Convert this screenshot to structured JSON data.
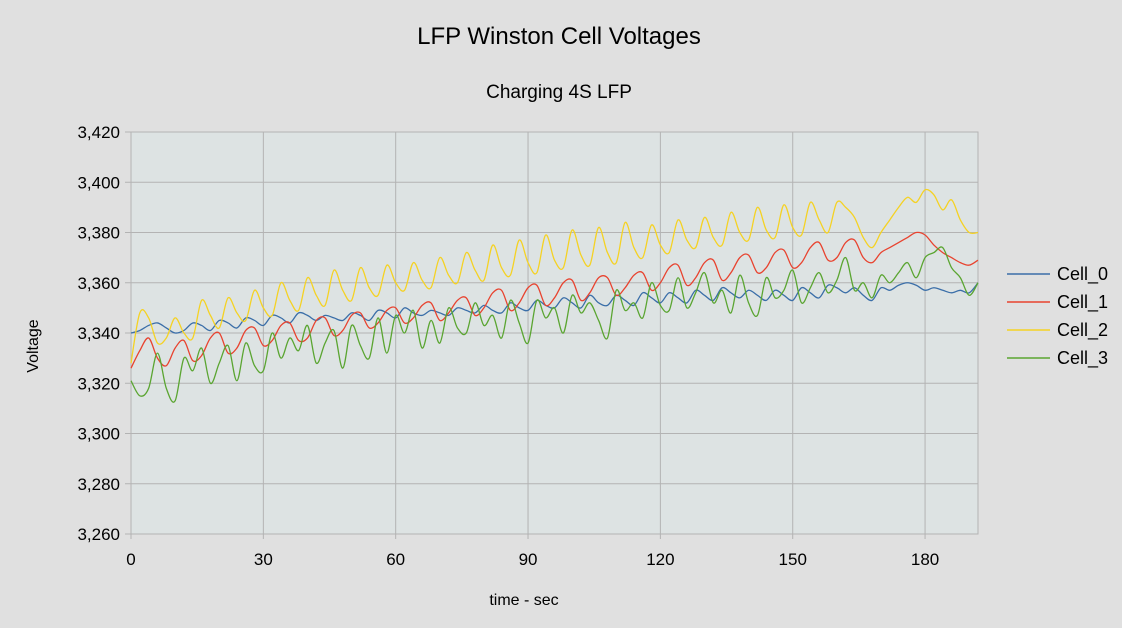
{
  "chart_data": {
    "type": "line",
    "title": "LFP Winston Cell Voltages",
    "subtitle": "Charging 4S LFP",
    "xlabel": "time - sec",
    "ylabel": "Voltage",
    "xlim": [
      0,
      192
    ],
    "ylim": [
      3.26,
      3.42
    ],
    "xticks": [
      0,
      30,
      60,
      90,
      120,
      150,
      180
    ],
    "xtick_labels": [
      "0",
      "30",
      "60",
      "90",
      "120",
      "150",
      "180"
    ],
    "yticks": [
      3.26,
      3.28,
      3.3,
      3.32,
      3.34,
      3.36,
      3.38,
      3.4,
      3.42
    ],
    "ytick_labels": [
      "3,260",
      "3,280",
      "3,300",
      "3,320",
      "3,340",
      "3,360",
      "3,380",
      "3,400",
      "3,420"
    ],
    "grid": true,
    "legend_position": "right",
    "plot_background": "#dde3e3",
    "series": [
      {
        "name": "Cell_0",
        "color": "#3a6ea8",
        "x": [
          0,
          2,
          4,
          6,
          8,
          10,
          12,
          14,
          16,
          18,
          20,
          22,
          24,
          26,
          28,
          30,
          32,
          34,
          36,
          38,
          40,
          42,
          44,
          46,
          48,
          50,
          52,
          54,
          56,
          58,
          60,
          62,
          64,
          66,
          68,
          70,
          72,
          74,
          76,
          78,
          80,
          82,
          84,
          86,
          88,
          90,
          92,
          94,
          96,
          98,
          100,
          102,
          104,
          106,
          108,
          110,
          112,
          114,
          116,
          118,
          120,
          122,
          124,
          126,
          128,
          130,
          132,
          134,
          136,
          138,
          140,
          142,
          144,
          146,
          148,
          150,
          152,
          154,
          156,
          158,
          160,
          162,
          164,
          166,
          168,
          170,
          172,
          174,
          176,
          178,
          180,
          182,
          184,
          186,
          188,
          190,
          192
        ],
        "values": [
          3.34,
          3.341,
          3.343,
          3.344,
          3.342,
          3.34,
          3.341,
          3.344,
          3.343,
          3.341,
          3.345,
          3.344,
          3.342,
          3.346,
          3.345,
          3.343,
          3.347,
          3.346,
          3.344,
          3.348,
          3.347,
          3.345,
          3.347,
          3.346,
          3.345,
          3.348,
          3.347,
          3.345,
          3.349,
          3.348,
          3.346,
          3.35,
          3.348,
          3.347,
          3.349,
          3.348,
          3.347,
          3.35,
          3.349,
          3.348,
          3.351,
          3.349,
          3.348,
          3.352,
          3.35,
          3.349,
          3.353,
          3.351,
          3.35,
          3.354,
          3.352,
          3.35,
          3.355,
          3.352,
          3.351,
          3.355,
          3.353,
          3.351,
          3.356,
          3.354,
          3.352,
          3.356,
          3.354,
          3.352,
          3.357,
          3.355,
          3.353,
          3.358,
          3.356,
          3.354,
          3.357,
          3.355,
          3.353,
          3.357,
          3.355,
          3.353,
          3.358,
          3.356,
          3.354,
          3.359,
          3.358,
          3.356,
          3.358,
          3.355,
          3.353,
          3.358,
          3.357,
          3.359,
          3.36,
          3.359,
          3.357,
          3.358,
          3.357,
          3.356,
          3.357,
          3.356,
          3.36
        ]
      },
      {
        "name": "Cell_1",
        "color": "#e8432f",
        "x": [
          0,
          2,
          4,
          6,
          8,
          10,
          12,
          14,
          16,
          18,
          20,
          22,
          24,
          26,
          28,
          30,
          32,
          34,
          36,
          38,
          40,
          42,
          44,
          46,
          48,
          50,
          52,
          54,
          56,
          58,
          60,
          62,
          64,
          66,
          68,
          70,
          72,
          74,
          76,
          78,
          80,
          82,
          84,
          86,
          88,
          90,
          92,
          94,
          96,
          98,
          100,
          102,
          104,
          106,
          108,
          110,
          112,
          114,
          116,
          118,
          120,
          122,
          124,
          126,
          128,
          130,
          132,
          134,
          136,
          138,
          140,
          142,
          144,
          146,
          148,
          150,
          152,
          154,
          156,
          158,
          160,
          162,
          164,
          166,
          168,
          170,
          172,
          174,
          176,
          178,
          180,
          182,
          184,
          186,
          188,
          190,
          192
        ],
        "values": [
          3.326,
          3.333,
          3.338,
          3.33,
          3.327,
          3.334,
          3.337,
          3.329,
          3.331,
          3.338,
          3.34,
          3.332,
          3.334,
          3.341,
          3.342,
          3.335,
          3.337,
          3.343,
          3.344,
          3.337,
          3.338,
          3.345,
          3.346,
          3.339,
          3.341,
          3.347,
          3.348,
          3.342,
          3.344,
          3.349,
          3.35,
          3.344,
          3.346,
          3.351,
          3.352,
          3.345,
          3.348,
          3.353,
          3.354,
          3.347,
          3.35,
          3.356,
          3.357,
          3.349,
          3.352,
          3.358,
          3.359,
          3.351,
          3.354,
          3.36,
          3.361,
          3.353,
          3.356,
          3.362,
          3.362,
          3.355,
          3.358,
          3.363,
          3.364,
          3.357,
          3.36,
          3.366,
          3.367,
          3.359,
          3.362,
          3.368,
          3.369,
          3.361,
          3.364,
          3.37,
          3.371,
          3.364,
          3.366,
          3.372,
          3.373,
          3.366,
          3.368,
          3.374,
          3.376,
          3.369,
          3.37,
          3.376,
          3.377,
          3.37,
          3.368,
          3.372,
          3.374,
          3.376,
          3.378,
          3.38,
          3.379,
          3.375,
          3.372,
          3.37,
          3.368,
          3.367,
          3.369
        ]
      },
      {
        "name": "Cell_2",
        "color": "#f5d223",
        "x": [
          0,
          2,
          4,
          6,
          8,
          10,
          12,
          14,
          16,
          18,
          20,
          22,
          24,
          26,
          28,
          30,
          32,
          34,
          36,
          38,
          40,
          42,
          44,
          46,
          48,
          50,
          52,
          54,
          56,
          58,
          60,
          62,
          64,
          66,
          68,
          70,
          72,
          74,
          76,
          78,
          80,
          82,
          84,
          86,
          88,
          90,
          92,
          94,
          96,
          98,
          100,
          102,
          104,
          106,
          108,
          110,
          112,
          114,
          116,
          118,
          120,
          122,
          124,
          126,
          128,
          130,
          132,
          134,
          136,
          138,
          140,
          142,
          144,
          146,
          148,
          150,
          152,
          154,
          156,
          158,
          160,
          162,
          164,
          166,
          168,
          170,
          172,
          174,
          176,
          178,
          180,
          182,
          184,
          186,
          188,
          190,
          192
        ],
        "values": [
          3.328,
          3.348,
          3.346,
          3.336,
          3.338,
          3.346,
          3.34,
          3.338,
          3.353,
          3.347,
          3.342,
          3.354,
          3.348,
          3.345,
          3.357,
          3.35,
          3.347,
          3.36,
          3.353,
          3.349,
          3.362,
          3.355,
          3.351,
          3.365,
          3.357,
          3.353,
          3.366,
          3.358,
          3.355,
          3.367,
          3.36,
          3.357,
          3.368,
          3.361,
          3.358,
          3.37,
          3.363,
          3.36,
          3.372,
          3.365,
          3.361,
          3.375,
          3.366,
          3.363,
          3.377,
          3.368,
          3.364,
          3.379,
          3.369,
          3.366,
          3.381,
          3.371,
          3.367,
          3.382,
          3.372,
          3.368,
          3.384,
          3.374,
          3.37,
          3.383,
          3.375,
          3.372,
          3.385,
          3.377,
          3.374,
          3.386,
          3.378,
          3.375,
          3.388,
          3.38,
          3.377,
          3.39,
          3.381,
          3.378,
          3.391,
          3.382,
          3.379,
          3.392,
          3.385,
          3.38,
          3.392,
          3.39,
          3.386,
          3.378,
          3.374,
          3.38,
          3.385,
          3.39,
          3.394,
          3.392,
          3.397,
          3.395,
          3.389,
          3.393,
          3.385,
          3.38,
          3.38
        ]
      },
      {
        "name": "Cell_3",
        "color": "#5aa531",
        "x": [
          0,
          2,
          4,
          6,
          8,
          10,
          12,
          14,
          16,
          18,
          20,
          22,
          24,
          26,
          28,
          30,
          32,
          34,
          36,
          38,
          40,
          42,
          44,
          46,
          48,
          50,
          52,
          54,
          56,
          58,
          60,
          62,
          64,
          66,
          68,
          70,
          72,
          74,
          76,
          78,
          80,
          82,
          84,
          86,
          88,
          90,
          92,
          94,
          96,
          98,
          100,
          102,
          104,
          106,
          108,
          110,
          112,
          114,
          116,
          118,
          120,
          122,
          124,
          126,
          128,
          130,
          132,
          134,
          136,
          138,
          140,
          142,
          144,
          146,
          148,
          150,
          152,
          154,
          156,
          158,
          160,
          162,
          164,
          166,
          168,
          170,
          172,
          174,
          176,
          178,
          180,
          182,
          184,
          186,
          188,
          190,
          192
        ],
        "values": [
          3.321,
          3.315,
          3.318,
          3.332,
          3.318,
          3.313,
          3.33,
          3.325,
          3.334,
          3.32,
          3.328,
          3.335,
          3.321,
          3.336,
          3.327,
          3.325,
          3.34,
          3.33,
          3.338,
          3.333,
          3.343,
          3.328,
          3.336,
          3.341,
          3.326,
          3.343,
          3.335,
          3.33,
          3.346,
          3.332,
          3.347,
          3.34,
          3.349,
          3.334,
          3.345,
          3.336,
          3.35,
          3.342,
          3.34,
          3.352,
          3.343,
          3.347,
          3.338,
          3.353,
          3.344,
          3.336,
          3.353,
          3.346,
          3.35,
          3.34,
          3.355,
          3.348,
          3.352,
          3.345,
          3.338,
          3.357,
          3.349,
          3.352,
          3.346,
          3.36,
          3.351,
          3.349,
          3.362,
          3.35,
          3.356,
          3.364,
          3.352,
          3.357,
          3.348,
          3.363,
          3.352,
          3.347,
          3.362,
          3.354,
          3.357,
          3.365,
          3.352,
          3.358,
          3.364,
          3.356,
          3.361,
          3.37,
          3.357,
          3.36,
          3.354,
          3.363,
          3.36,
          3.364,
          3.368,
          3.362,
          3.37,
          3.372,
          3.374,
          3.366,
          3.362,
          3.355,
          3.36
        ]
      }
    ]
  }
}
